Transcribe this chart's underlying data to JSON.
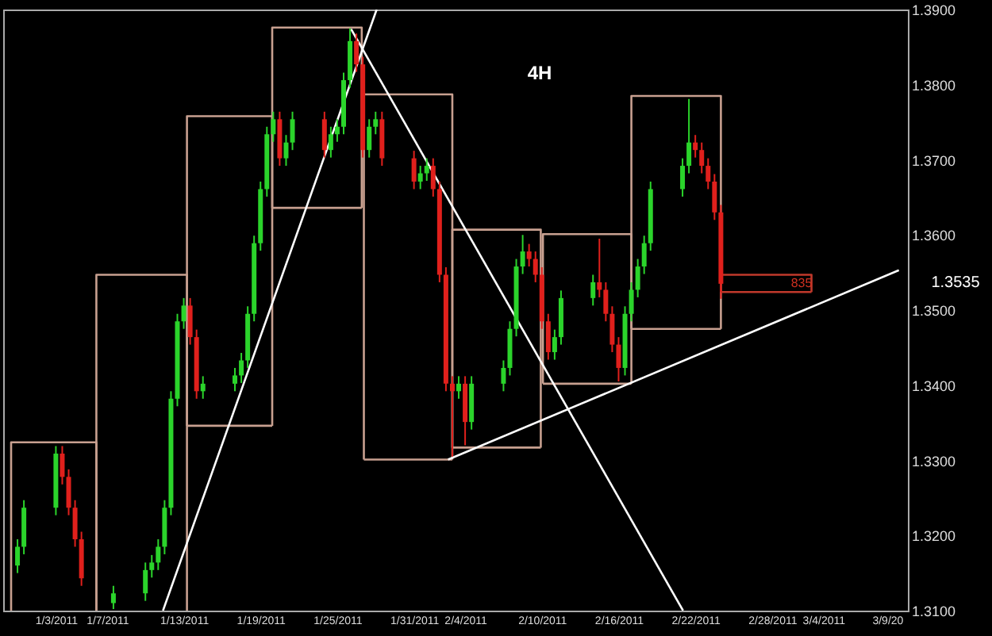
{
  "chart_data": {
    "type": "candlestick",
    "xlim": [
      "2010-12-30T12:00",
      "2011-03-10T00:00"
    ],
    "ylim": [
      1.31,
      1.39
    ],
    "xticks": [
      {
        "value": "2011-01-03",
        "label": "1/3/2011"
      },
      {
        "value": "2011-01-07",
        "label": "1/7/2011"
      },
      {
        "value": "2011-01-13",
        "label": "1/13/2011"
      },
      {
        "value": "2011-01-19",
        "label": "1/19/2011"
      },
      {
        "value": "2011-01-25",
        "label": "1/25/2011"
      },
      {
        "value": "2011-01-31",
        "label": "1/31/2011"
      },
      {
        "value": "2011-02-04",
        "label": "2/4/2011"
      },
      {
        "value": "2011-02-10",
        "label": "2/10/2011"
      },
      {
        "value": "2011-02-16",
        "label": "2/16/2011"
      },
      {
        "value": "2011-02-22",
        "label": "2/22/2011"
      },
      {
        "value": "2011-02-28",
        "label": "2/28/2011"
      },
      {
        "value": "2011-03-04",
        "label": "3/4/2011"
      },
      {
        "value": "2011-03-09",
        "label": "3/9/20"
      }
    ],
    "yticks": [
      {
        "value": 1.31,
        "label": "1.3100"
      },
      {
        "value": 1.32,
        "label": "1.3200"
      },
      {
        "value": 1.33,
        "label": "1.3300"
      },
      {
        "value": 1.34,
        "label": "1.3400"
      },
      {
        "value": 1.35,
        "label": "1.3500"
      },
      {
        "value": 1.36,
        "label": "1.3600"
      },
      {
        "value": 1.37,
        "label": "1.3700"
      },
      {
        "value": 1.38,
        "label": "1.3800"
      },
      {
        "value": 1.39,
        "label": "1.3900"
      }
    ],
    "annotations": [
      "4H",
      "835",
      "1.3535"
    ],
    "x": [
      "2010-12-31T00:00",
      "2010-12-31T12:00",
      "2011-01-03T00:00",
      "2011-01-03T12:00",
      "2011-01-04T00:00",
      "2011-01-04T12:00",
      "2011-01-05T00:00",
      "2011-01-07T12:00",
      "2011-01-10T00:00",
      "2011-01-10T12:00",
      "2011-01-11T00:00",
      "2011-01-11T12:00",
      "2011-01-12T00:00",
      "2011-01-12T12:00",
      "2011-01-13T00:00",
      "2011-01-13T12:00",
      "2011-01-14T00:00",
      "2011-01-14T12:00",
      "2011-01-17T00:00",
      "2011-01-17T12:00",
      "2011-01-18T00:00",
      "2011-01-18T12:00",
      "2011-01-19T00:00",
      "2011-01-19T12:00",
      "2011-01-20T00:00",
      "2011-01-20T12:00",
      "2011-01-21T00:00",
      "2011-01-21T12:00",
      "2011-01-24T00:00",
      "2011-01-24T12:00",
      "2011-01-25T00:00",
      "2011-01-25T12:00",
      "2011-01-26T00:00",
      "2011-01-26T12:00",
      "2011-01-27T00:00",
      "2011-01-27T12:00",
      "2011-01-28T00:00",
      "2011-01-28T12:00",
      "2011-01-31T00:00",
      "2011-01-31T12:00",
      "2011-02-01T00:00",
      "2011-02-01T12:00",
      "2011-02-02T00:00",
      "2011-02-02T12:00",
      "2011-02-03T00:00",
      "2011-02-03T12:00",
      "2011-02-04T00:00",
      "2011-02-04T12:00",
      "2011-02-07T00:00",
      "2011-02-07T12:00",
      "2011-02-08T00:00",
      "2011-02-08T12:00",
      "2011-02-09T00:00",
      "2011-02-09T12:00",
      "2011-02-10T00:00",
      "2011-02-10T12:00",
      "2011-02-11T00:00",
      "2011-02-11T12:00",
      "2011-02-14T00:00",
      "2011-02-14T12:00",
      "2011-02-15T00:00",
      "2011-02-15T12:00",
      "2011-02-16T00:00",
      "2011-02-16T12:00",
      "2011-02-17T00:00",
      "2011-02-17T12:00",
      "2011-02-18T00:00",
      "2011-02-18T12:00",
      "2011-02-21T00:00",
      "2011-02-21T12:00",
      "2011-02-22T00:00",
      "2011-02-22T12:00",
      "2011-02-23T00:00",
      "2011-02-23T12:00",
      "2011-02-24T00:00"
    ],
    "ohlc": [
      [
        1.316,
        1.3195,
        1.315,
        1.3185
      ],
      [
        1.3185,
        1.3247,
        1.3175,
        1.3237
      ],
      [
        1.3237,
        1.3319,
        1.3227,
        1.3309
      ],
      [
        1.3309,
        1.3319,
        1.3268,
        1.3278
      ],
      [
        1.3278,
        1.3288,
        1.3227,
        1.3237
      ],
      [
        1.3237,
        1.3247,
        1.3185,
        1.3195
      ],
      [
        1.3195,
        1.3205,
        1.3133,
        1.3143
      ],
      [
        1.311,
        1.3133,
        1.3102,
        1.3123
      ],
      [
        1.3123,
        1.3164,
        1.3113,
        1.3154
      ],
      [
        1.3154,
        1.3174,
        1.3144,
        1.3164
      ],
      [
        1.3164,
        1.3195,
        1.3154,
        1.3185
      ],
      [
        1.3185,
        1.3247,
        1.3175,
        1.3237
      ],
      [
        1.3237,
        1.3392,
        1.3227,
        1.3382
      ],
      [
        1.3382,
        1.3495,
        1.3372,
        1.3485
      ],
      [
        1.3485,
        1.3516,
        1.3475,
        1.3506
      ],
      [
        1.3506,
        1.3516,
        1.3454,
        1.3464
      ],
      [
        1.3464,
        1.3474,
        1.3382,
        1.3392
      ],
      [
        1.3392,
        1.3412,
        1.3382,
        1.3402
      ],
      [
        1.3402,
        1.3423,
        1.3392,
        1.3413
      ],
      [
        1.3413,
        1.3443,
        1.3403,
        1.3433
      ],
      [
        1.3433,
        1.3505,
        1.3423,
        1.3495
      ],
      [
        1.3495,
        1.3599,
        1.3485,
        1.3589
      ],
      [
        1.3589,
        1.3671,
        1.3579,
        1.3661
      ],
      [
        1.3661,
        1.3744,
        1.3651,
        1.3734
      ],
      [
        1.3734,
        1.3764,
        1.3724,
        1.3754
      ],
      [
        1.3754,
        1.3764,
        1.3692,
        1.3702
      ],
      [
        1.3702,
        1.3733,
        1.3692,
        1.3723
      ],
      [
        1.3723,
        1.3764,
        1.3713,
        1.3754
      ],
      [
        1.3754,
        1.3764,
        1.3703,
        1.3713
      ],
      [
        1.3713,
        1.3744,
        1.3703,
        1.3734
      ],
      [
        1.3734,
        1.3754,
        1.3724,
        1.3744
      ],
      [
        1.3744,
        1.3816,
        1.3734,
        1.3806
      ],
      [
        1.3806,
        1.3875,
        1.3796,
        1.3858
      ],
      [
        1.3858,
        1.3868,
        1.3817,
        1.3827
      ],
      [
        1.3827,
        1.3837,
        1.3703,
        1.3713
      ],
      [
        1.3713,
        1.3754,
        1.3703,
        1.3744
      ],
      [
        1.3744,
        1.3764,
        1.3734,
        1.3754
      ],
      [
        1.3754,
        1.3764,
        1.3692,
        1.3702
      ],
      [
        1.3702,
        1.3712,
        1.3661,
        1.3671
      ],
      [
        1.3671,
        1.3692,
        1.3661,
        1.3682
      ],
      [
        1.3682,
        1.3702,
        1.3672,
        1.3692
      ],
      [
        1.3692,
        1.3702,
        1.3651,
        1.3661
      ],
      [
        1.3661,
        1.3671,
        1.3537,
        1.3547
      ],
      [
        1.3547,
        1.3557,
        1.3392,
        1.3402
      ],
      [
        1.3402,
        1.3412,
        1.3305,
        1.3392
      ],
      [
        1.3392,
        1.3412,
        1.3382,
        1.3402
      ],
      [
        1.3402,
        1.3412,
        1.332,
        1.3351
      ],
      [
        1.3351,
        1.3412,
        1.3341,
        1.3402
      ],
      [
        1.3402,
        1.3433,
        1.3392,
        1.3423
      ],
      [
        1.3423,
        1.3485,
        1.3413,
        1.3475
      ],
      [
        1.3475,
        1.3568,
        1.3465,
        1.3558
      ],
      [
        1.3558,
        1.36,
        1.3548,
        1.3578
      ],
      [
        1.3578,
        1.3588,
        1.3558,
        1.3568
      ],
      [
        1.3568,
        1.3578,
        1.3537,
        1.3547
      ],
      [
        1.3547,
        1.3557,
        1.3475,
        1.3485
      ],
      [
        1.3485,
        1.3495,
        1.3434,
        1.3444
      ],
      [
        1.3444,
        1.3474,
        1.3434,
        1.3464
      ],
      [
        1.3464,
        1.3526,
        1.3454,
        1.3516
      ],
      [
        1.3516,
        1.3547,
        1.3506,
        1.3537
      ],
      [
        1.3537,
        1.3595,
        1.3517,
        1.3527
      ],
      [
        1.3527,
        1.3537,
        1.3485,
        1.3495
      ],
      [
        1.3495,
        1.3505,
        1.3444,
        1.3454
      ],
      [
        1.3454,
        1.3464,
        1.3405,
        1.3423
      ],
      [
        1.3423,
        1.3505,
        1.3413,
        1.3495
      ],
      [
        1.3495,
        1.3537,
        1.3485,
        1.3527
      ],
      [
        1.3527,
        1.3568,
        1.3517,
        1.3558
      ],
      [
        1.3558,
        1.3599,
        1.3548,
        1.3589
      ],
      [
        1.3589,
        1.3671,
        1.3579,
        1.3661
      ],
      [
        1.3661,
        1.3702,
        1.3651,
        1.3692
      ],
      [
        1.3692,
        1.3781,
        1.3682,
        1.3723
      ],
      [
        1.3723,
        1.3733,
        1.3703,
        1.3713
      ],
      [
        1.3713,
        1.3723,
        1.3682,
        1.3692
      ],
      [
        1.3692,
        1.3702,
        1.3661,
        1.3671
      ],
      [
        1.3671,
        1.3681,
        1.362,
        1.363
      ],
      [
        1.363,
        1.364,
        1.3515,
        1.3535
      ]
    ],
    "colors": [
      "#2bd42b",
      "#2bd42b",
      "#2bd42b",
      "#e0201c",
      "#e0201c",
      "#e0201c",
      "#e0201c",
      "#2bd42b",
      "#2bd42b",
      "#2bd42b",
      "#2bd42b",
      "#2bd42b",
      "#2bd42b",
      "#2bd42b",
      "#2bd42b",
      "#e0201c",
      "#e0201c",
      "#2bd42b",
      "#2bd42b",
      "#2bd42b",
      "#2bd42b",
      "#2bd42b",
      "#2bd42b",
      "#2bd42b",
      "#2bd42b",
      "#e0201c",
      "#2bd42b",
      "#2bd42b",
      "#e0201c",
      "#2bd42b",
      "#2bd42b",
      "#2bd42b",
      "#2bd42b",
      "#e0201c",
      "#e0201c",
      "#2bd42b",
      "#2bd42b",
      "#e0201c",
      "#e0201c",
      "#2bd42b",
      "#2bd42b",
      "#e0201c",
      "#e0201c",
      "#e0201c",
      "#e0201c",
      "#2bd42b",
      "#e0201c",
      "#2bd42b",
      "#2bd42b",
      "#2bd42b",
      "#2bd42b",
      "#2bd42b",
      "#e0201c",
      "#e0201c",
      "#e0201c",
      "#e0201c",
      "#2bd42b",
      "#2bd42b",
      "#2bd42b",
      "#e0201c",
      "#e0201c",
      "#e0201c",
      "#e0201c",
      "#2bd42b",
      "#2bd42b",
      "#2bd42b",
      "#2bd42b",
      "#2bd42b",
      "#2bd42b",
      "#2bd42b",
      "#e0201c",
      "#e0201c",
      "#e0201c",
      "#e0201c",
      "#e0201c"
    ],
    "series": [
      {
        "type": "line",
        "color": "#c8a090",
        "x": [
          "2010-12-30T12:00",
          "2010-12-30T12:00",
          "2011-01-06T04:00",
          "2011-01-06T04:00"
        ],
        "values": [
          1.31,
          1.3324,
          1.3324,
          1.31
        ]
      },
      {
        "type": "line",
        "color": "#c8a090",
        "x": [
          "2011-01-06T04:00",
          "2011-01-06T04:00",
          "2011-01-13T06:00",
          "2011-01-13T06:00"
        ],
        "values": [
          1.31,
          1.3547,
          1.3547,
          1.31
        ]
      },
      {
        "type": "line",
        "color": "#c8a090",
        "x": [
          "2011-01-13T06:00",
          "2011-01-13T06:00",
          "2011-01-19T22:00",
          "2011-01-19T22:00"
        ],
        "values": [
          1.3346,
          1.3758,
          1.3758,
          1.3346
        ]
      },
      {
        "type": "line",
        "color": "#c8a090",
        "x": [
          "2011-01-13T06:00",
          "2011-01-19T22:00"
        ],
        "values": [
          1.3346,
          1.3346
        ]
      },
      {
        "type": "line",
        "color": "#c8a090",
        "x": [
          "2011-01-19T22:00",
          "2011-01-19T22:00",
          "2011-01-26T22:00",
          "2011-01-26T22:00"
        ],
        "values": [
          1.3636,
          1.3876,
          1.3876,
          1.3636
        ]
      },
      {
        "type": "line",
        "color": "#c8a090",
        "x": [
          "2011-01-19T22:00",
          "2011-01-26T22:00"
        ],
        "values": [
          1.3636,
          1.3636
        ]
      },
      {
        "type": "line",
        "color": "#c8a090",
        "x": [
          "2011-01-27T02:00",
          "2011-01-27T02:00",
          "2011-02-03T00:00",
          "2011-02-03T00:00"
        ],
        "values": [
          1.3301,
          1.3787,
          1.3787,
          1.3301
        ]
      },
      {
        "type": "line",
        "color": "#c8a090",
        "x": [
          "2011-01-27T02:00",
          "2011-02-03T00:00"
        ],
        "values": [
          1.3301,
          1.3301
        ]
      },
      {
        "type": "line",
        "color": "#c8a090",
        "x": [
          "2011-02-03T00:00",
          "2011-02-03T00:00",
          "2011-02-09T22:00",
          "2011-02-09T22:00"
        ],
        "values": [
          1.3317,
          1.3607,
          1.3607,
          1.3317
        ]
      },
      {
        "type": "line",
        "color": "#c8a090",
        "x": [
          "2011-02-03T00:00",
          "2011-02-09T22:00"
        ],
        "values": [
          1.3317,
          1.3317
        ]
      },
      {
        "type": "line",
        "color": "#c8a090",
        "x": [
          "2011-02-10T02:00",
          "2011-02-10T02:00",
          "2011-02-17T00:00",
          "2011-02-17T00:00"
        ],
        "values": [
          1.3402,
          1.3601,
          1.3601,
          1.3402
        ]
      },
      {
        "type": "line",
        "color": "#c8a090",
        "x": [
          "2011-02-10T02:00",
          "2011-02-17T00:00"
        ],
        "values": [
          1.3402,
          1.3402
        ]
      },
      {
        "type": "line",
        "color": "#c8a090",
        "x": [
          "2011-02-17T00:00",
          "2011-02-17T00:00",
          "2011-02-24T00:00",
          "2011-02-24T00:00"
        ],
        "values": [
          1.3475,
          1.3785,
          1.3785,
          1.3475
        ]
      },
      {
        "type": "line",
        "color": "#c8a090",
        "x": [
          "2011-02-17T00:00",
          "2011-02-24T00:00"
        ],
        "values": [
          1.3475,
          1.3475
        ]
      },
      {
        "type": "line",
        "color": "#c0392b",
        "x": [
          "2011-02-24T00:00",
          "2011-02-24T00:00",
          "2011-03-03T02:00",
          "2011-03-03T02:00"
        ],
        "values": [
          1.3524,
          1.3547,
          1.3547,
          1.3524
        ]
      },
      {
        "type": "line",
        "color": "#c0392b",
        "x": [
          "2011-02-24T00:00",
          "2011-03-03T02:00"
        ],
        "values": [
          1.3524,
          1.3524
        ]
      },
      {
        "type": "line",
        "color": "#ffffff",
        "x": [
          "2011-01-11T09:00",
          "2011-01-28T02:00"
        ],
        "values": [
          1.31,
          1.39
        ]
      },
      {
        "type": "line",
        "color": "#ffffff",
        "x": [
          "2011-01-26T02:00",
          "2011-02-21T01:00"
        ],
        "values": [
          1.3874,
          1.31
        ]
      },
      {
        "type": "line",
        "color": "#ffffff",
        "x": [
          "2011-02-02T16:00",
          "2011-03-09T22:00"
        ],
        "values": [
          1.3301,
          1.3553
        ]
      }
    ]
  }
}
